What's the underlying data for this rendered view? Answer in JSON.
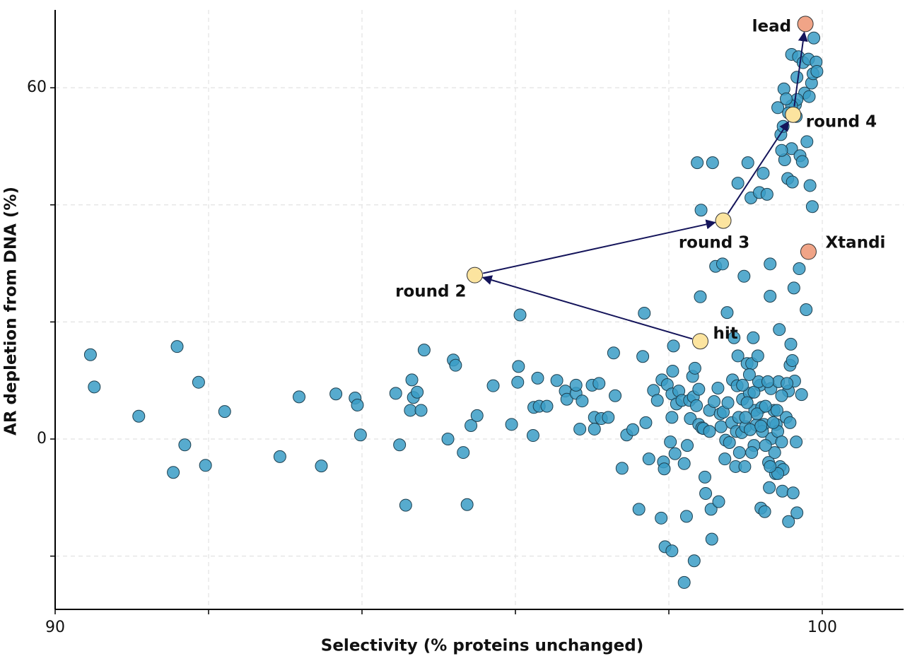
{
  "chart_data": {
    "type": "scatter",
    "xlabel": "Selectivity (% proteins unchanged)",
    "ylabel": "AR depletion from DNA (%)",
    "xlim": [
      90,
      101.06
    ],
    "ylim": [
      -29.1,
      73.3
    ],
    "xticks": [
      90,
      {
        "value": 92,
        "label": null
      },
      {
        "value": 94,
        "label": null
      },
      {
        "value": 96,
        "label": null
      },
      {
        "value": 98,
        "label": null
      },
      100
    ],
    "yticks": [
      {
        "value": -20,
        "label": null
      },
      0,
      {
        "value": 20,
        "label": null
      },
      {
        "value": 40,
        "label": null
      },
      60
    ],
    "grid": true,
    "color": "#3a9cc6",
    "x": [
      90.46,
      90.51,
      91.09,
      91.59,
      91.54,
      91.69,
      91.87,
      91.96,
      92.21,
      92.93,
      93.18,
      93.47,
      93.66,
      93.91,
      93.94,
      93.98,
      94.44,
      94.49,
      94.57,
      94.65,
      94.67,
      94.72,
      94.63,
      94.77,
      94.81,
      95.12,
      95.19,
      95.22,
      95.32,
      95.37,
      95.42,
      95.5,
      95.71,
      95.95,
      96.04,
      96.03,
      96.06,
      96.23,
      96.29,
      96.24,
      96.31,
      96.41,
      96.54,
      96.65,
      96.67,
      96.79,
      96.79,
      96.87,
      96.84,
      97.0,
      97.09,
      97.03,
      97.03,
      97.12,
      97.21,
      97.28,
      97.3,
      97.39,
      97.45,
      97.53,
      97.61,
      97.66,
      97.68,
      97.7,
      97.74,
      97.8,
      97.85,
      97.9,
      97.91,
      97.93,
      97.94,
      97.95,
      98.04,
      97.98,
      98.02,
      98.04,
      98.04,
      98.05,
      98.06,
      98.08,
      98.1,
      98.13,
      98.17,
      98.2,
      98.2,
      98.23,
      98.24,
      98.27,
      98.28,
      98.31,
      98.32,
      98.33,
      98.34,
      98.36,
      98.37,
      98.39,
      98.41,
      98.42,
      98.43,
      98.45,
      98.39,
      98.47,
      98.48,
      98.53,
      98.53,
      98.55,
      98.56,
      98.57,
      98.59,
      98.61,
      98.64,
      98.65,
      98.67,
      98.68,
      98.7,
      98.71,
      98.73,
      98.74,
      98.76,
      98.77,
      98.79,
      98.82,
      98.83,
      98.85,
      98.87,
      98.88,
      98.89,
      98.9,
      98.9,
      98.92,
      98.95,
      98.96,
      98.98,
      98.99,
      99.0,
      99.02,
      99.03,
      99.05,
      99.07,
      99.08,
      99.1,
      99.11,
      99.12,
      99.14,
      99.16,
      99.18,
      99.19,
      99.2,
      99.21,
      99.23,
      99.24,
      99.25,
      99.28,
      99.3,
      99.31,
      99.32,
      99.32,
      99.33,
      99.34,
      99.37,
      99.39,
      99.4,
      99.42,
      99.43,
      99.44,
      99.46,
      99.47,
      99.48,
      99.49,
      99.5,
      99.51,
      99.53,
      99.55,
      99.56,
      99.56,
      99.58,
      99.59,
      99.6,
      99.6,
      99.61,
      99.62,
      99.63,
      99.64,
      99.65,
      99.66,
      99.67,
      99.67,
      99.69,
      99.7,
      99.71,
      99.73,
      99.74,
      99.75,
      99.77,
      99.79,
      99.8,
      99.82,
      99.83,
      99.84,
      99.86,
      99.87,
      99.88,
      99.89,
      99.92,
      99.93,
      98.91,
      98.96,
      99.0,
      99.06,
      99.08,
      99.11,
      99.15,
      99.17,
      99.22,
      99.26,
      99.29,
      99.36,
      99.38,
      99.41,
      99.45,
      99.47,
      99.54,
      99.58,
      99.61,
      99.67,
      99.6,
      99.53,
      99.42,
      99.56,
      99.66,
      99.47,
      99.49,
      99.42,
      99.32,
      99.26,
      99.2,
      99.05,
      99.02
    ],
    "y": [
      14.4,
      8.9,
      3.9,
      15.8,
      -5.7,
      -1.0,
      9.7,
      -4.5,
      4.7,
      -3.0,
      7.2,
      -4.6,
      7.7,
      7.0,
      5.8,
      0.7,
      7.8,
      -1.0,
      -11.3,
      10.1,
      7.1,
      8.0,
      4.9,
      4.9,
      15.2,
      0.0,
      13.5,
      12.6,
      -2.3,
      -11.2,
      2.3,
      4.0,
      9.1,
      2.5,
      12.4,
      9.7,
      21.2,
      0.6,
      10.4,
      5.4,
      5.6,
      5.6,
      10.0,
      8.2,
      6.8,
      7.8,
      9.2,
      6.5,
      1.7,
      9.2,
      9.5,
      3.7,
      1.7,
      3.5,
      3.7,
      14.7,
      7.4,
      -5.0,
      0.7,
      1.6,
      -12.0,
      14.1,
      21.5,
      2.8,
      -3.4,
      8.3,
      6.6,
      -13.5,
      10.1,
      -3.9,
      -5.1,
      -18.4,
      -19.1,
      9.3,
      -0.5,
      3.7,
      7.7,
      11.6,
      15.9,
      -2.5,
      6.0,
      8.2,
      6.6,
      -4.2,
      -24.5,
      -13.2,
      -1.1,
      6.6,
      3.5,
      10.7,
      7.2,
      -20.8,
      12.1,
      5.7,
      47.2,
      2.5,
      24.3,
      39.1,
      1.9,
      1.8,
      8.5,
      -6.5,
      -9.3,
      4.9,
      1.3,
      -12.0,
      -17.1,
      47.2,
      6.4,
      29.5,
      8.7,
      -10.7,
      4.3,
      2.1,
      29.9,
      4.6,
      -3.4,
      -0.2,
      21.6,
      6.2,
      -0.6,
      2.8,
      10.1,
      17.3,
      -4.7,
      1.3,
      9.1,
      14.2,
      43.7,
      -2.3,
      1.1,
      6.8,
      27.8,
      -4.7,
      2.1,
      12.9,
      47.2,
      7.8,
      41.2,
      12.9,
      17.3,
      -1.1,
      4.9,
      2.4,
      14.2,
      42.1,
      9.2,
      -11.8,
      5.4,
      45.4,
      2.5,
      -12.4,
      41.8,
      -4.0,
      -8.3,
      29.9,
      24.4,
      8.6,
      0.1,
      4.9,
      -5.9,
      2.5,
      1.3,
      9.8,
      18.7,
      52.0,
      -0.5,
      -8.9,
      53.4,
      59.8,
      47.7,
      3.7,
      44.5,
      8.2,
      -14.1,
      12.6,
      16.2,
      49.6,
      65.7,
      43.9,
      -9.2,
      25.8,
      9.9,
      57.1,
      -0.5,
      61.8,
      -12.6,
      65.3,
      29.1,
      48.4,
      7.6,
      47.4,
      64.3,
      59.1,
      22.1,
      50.8,
      64.9,
      58.5,
      43.3,
      60.8,
      39.7,
      62.4,
      68.5,
      64.4,
      62.8,
      3.7,
      9.2,
      3.7,
      1.6,
      -2.3,
      8.0,
      4.3,
      9.8,
      1.3,
      5.6,
      9.8,
      2.8,
      -2.3,
      4.9,
      -4.7,
      7.4,
      9.5,
      2.8,
      13.4,
      58.0,
      56.9,
      58.1,
      56.6,
      55.7,
      55.1,
      49.3,
      -5.2,
      -5.9,
      -4.7,
      -1.1,
      2.2,
      11.0,
      6.2
    ],
    "trajectory": [
      {
        "label": "hit",
        "x": 98.41,
        "y": 16.7,
        "color": "#fce49f"
      },
      {
        "label": "round 2",
        "x": 95.47,
        "y": 28.0,
        "color": "#fce49f"
      },
      {
        "label": "round 3",
        "x": 98.71,
        "y": 37.3,
        "color": "#fce49f"
      },
      {
        "label": "round 4",
        "x": 99.62,
        "y": 55.4,
        "color": "#fce49f"
      },
      {
        "label": "lead",
        "x": 99.78,
        "y": 70.9,
        "color": "#f0a487"
      }
    ],
    "reference": [
      {
        "label": "Xtandi",
        "x": 99.82,
        "y": 32.0,
        "color": "#f0a487"
      }
    ],
    "arrow_color": "#14145a"
  }
}
